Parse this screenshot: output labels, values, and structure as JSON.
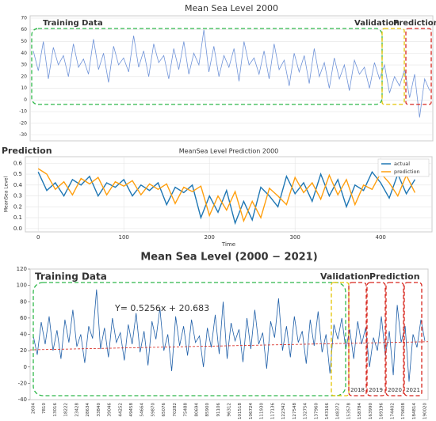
{
  "chart_data": [
    {
      "type": "line",
      "title": "Mean Sea Level 2000",
      "ylim": [
        -35,
        72
      ],
      "yticks": [
        -30,
        -20,
        -10,
        0,
        10,
        20,
        30,
        40,
        50,
        60,
        70
      ],
      "grid": true,
      "series": [
        {
          "name": "sea level",
          "color": "#6f93d8",
          "values": [
            42,
            25,
            50,
            18,
            45,
            30,
            38,
            20,
            48,
            28,
            35,
            22,
            52,
            26,
            40,
            15,
            46,
            30,
            36,
            24,
            55,
            28,
            42,
            20,
            48,
            32,
            38,
            18,
            44,
            26,
            50,
            22,
            40,
            30,
            60,
            24,
            46,
            20,
            38,
            28,
            44,
            16,
            50,
            30,
            36,
            22,
            42,
            18,
            48,
            26,
            34,
            12,
            40,
            24,
            38,
            14,
            44,
            20,
            32,
            10,
            36,
            18,
            30,
            8,
            34,
            22,
            28,
            10,
            32,
            18,
            30,
            6,
            20,
            12,
            26,
            2,
            22,
            -15,
            18,
            8
          ]
        }
      ],
      "annotations": [
        {
          "text": "Training Data",
          "color": "#2fb84a"
        },
        {
          "text": "Validation",
          "color": "#e3c300"
        },
        {
          "text": "Prediction",
          "color": "#d7261d"
        }
      ]
    },
    {
      "type": "line",
      "title": "MeanSea Level Prediction 2000",
      "label": "Prediction",
      "xlabel": "Time",
      "ylabel": "MeanSea Level",
      "xlim": [
        -15,
        460
      ],
      "xticks": [
        0,
        100,
        200,
        300,
        400
      ],
      "ylim": [
        -0.03,
        0.66
      ],
      "yticks": [
        {
          "value": 0,
          "label": "0.0"
        },
        0.1,
        0.2,
        0.3,
        0.4,
        0.5,
        0.6
      ],
      "grid": true,
      "legend": "upper right",
      "x": [
        0,
        10,
        20,
        30,
        40,
        50,
        60,
        70,
        80,
        90,
        100,
        110,
        120,
        130,
        140,
        150,
        160,
        170,
        180,
        190,
        200,
        210,
        220,
        230,
        240,
        250,
        260,
        270,
        280,
        290,
        300,
        310,
        320,
        330,
        340,
        350,
        360,
        370,
        380,
        390,
        400,
        410,
        420,
        430,
        440
      ],
      "series": [
        {
          "name": "actual",
          "color": "#1f77b4",
          "values": [
            0.52,
            0.35,
            0.42,
            0.3,
            0.45,
            0.4,
            0.48,
            0.3,
            0.42,
            0.38,
            0.45,
            0.3,
            0.4,
            0.35,
            0.42,
            0.22,
            0.38,
            0.33,
            0.4,
            0.1,
            0.3,
            0.15,
            0.35,
            0.05,
            0.25,
            0.08,
            0.38,
            0.3,
            0.2,
            0.48,
            0.32,
            0.42,
            0.25,
            0.5,
            0.3,
            0.45,
            0.2,
            0.4,
            0.35,
            0.52,
            0.42,
            0.28,
            0.5,
            0.32,
            0.45
          ]
        },
        {
          "name": "prediction",
          "color": "#ff9f0e",
          "values": [
            0.55,
            0.5,
            0.36,
            0.43,
            0.31,
            0.46,
            0.41,
            0.47,
            0.31,
            0.43,
            0.39,
            0.44,
            0.31,
            0.41,
            0.36,
            0.41,
            0.23,
            0.38,
            0.34,
            0.39,
            0.12,
            0.3,
            0.17,
            0.34,
            0.07,
            0.25,
            0.1,
            0.37,
            0.3,
            0.22,
            0.47,
            0.33,
            0.42,
            0.27,
            0.49,
            0.31,
            0.45,
            0.22,
            0.4,
            0.36,
            0.51,
            0.42,
            0.3,
            0.49,
            0.33
          ]
        }
      ]
    },
    {
      "type": "line",
      "title": "Mean Sea Level (2000 − 2021)",
      "ylim": [
        -40,
        120
      ],
      "yticks": [
        -40,
        -20,
        0,
        20,
        40,
        60,
        80,
        100,
        120
      ],
      "grid": false,
      "xtick_labels": [
        "2604",
        "7810",
        "13016",
        "18222",
        "23428",
        "28634",
        "33840",
        "39046",
        "44252",
        "49458",
        "54664",
        "59870",
        "65076",
        "70282",
        "75488",
        "80694",
        "85900",
        "91106",
        "96312",
        "101518",
        "106724",
        "111930",
        "117136",
        "122342",
        "127548",
        "132754",
        "137960",
        "143166",
        "148372",
        "153578",
        "158784",
        "163990",
        "169196",
        "174402",
        "179608",
        "184814",
        "190020"
      ],
      "series": [
        {
          "name": "sea level",
          "color": "#1f5fa8",
          "values": [
            38,
            15,
            55,
            28,
            62,
            20,
            45,
            10,
            58,
            30,
            70,
            25,
            40,
            5,
            50,
            35,
            95,
            22,
            48,
            12,
            60,
            30,
            42,
            8,
            52,
            28,
            66,
            18,
            44,
            2,
            56,
            34,
            72,
            20,
            40,
            -5,
            62,
            26,
            50,
            14,
            58,
            30,
            38,
            0,
            48,
            24,
            64,
            16,
            80,
            10,
            54,
            32,
            46,
            6,
            60,
            22,
            70,
            28,
            42,
            -2,
            56,
            36,
            84,
            20,
            50,
            12,
            62,
            30,
            44,
            4,
            58,
            26,
            68,
            18,
            40,
            -8,
            52,
            34,
            60,
            22,
            46,
            10,
            56,
            28,
            48,
            0,
            36,
            20,
            62,
            14,
            44,
            -10,
            76,
            30,
            50,
            -18,
            40,
            24,
            58,
            32
          ]
        }
      ],
      "trend": {
        "color": "#d7261d",
        "values": [
          21,
          31
        ]
      },
      "annotations": [
        {
          "text": "Training Data",
          "color": "#2fb84a"
        },
        {
          "text": "Validation",
          "color": "#e3c300"
        },
        {
          "text": "Prediction",
          "color": "#d7261d"
        },
        {
          "text": "Y= 0.5256x + 20.683",
          "color": "#d7261d"
        },
        {
          "text": "2018",
          "color": "#d7261d"
        },
        {
          "text": "2019",
          "color": "#d7261d"
        },
        {
          "text": "2020",
          "color": "#d7261d"
        },
        {
          "text": "2021",
          "color": "#d7261d"
        }
      ]
    }
  ]
}
